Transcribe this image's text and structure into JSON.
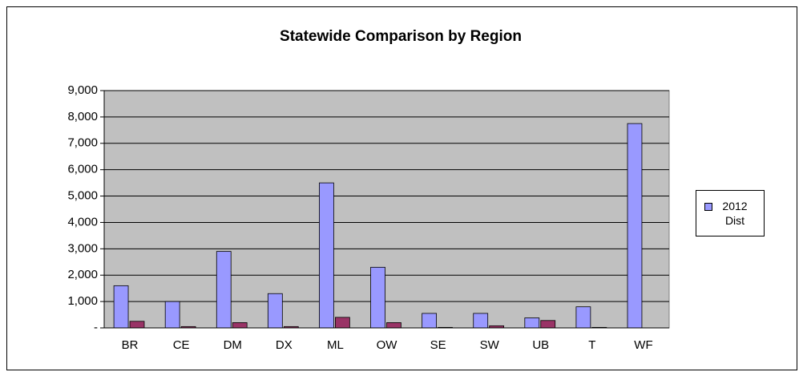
{
  "chart_data": {
    "type": "bar",
    "title": "Statewide Comparison by Region",
    "categories": [
      "BR",
      "CE",
      "DM",
      "DX",
      "ML",
      "OW",
      "SE",
      "SW",
      "UB",
      "T",
      "WF"
    ],
    "series": [
      {
        "name": "2012 Dist",
        "color": "#9999ff",
        "values": [
          1600,
          1000,
          2900,
          1300,
          5500,
          2300,
          550,
          550,
          380,
          800,
          7750
        ]
      },
      {
        "color": "#993366",
        "values": [
          250,
          50,
          200,
          50,
          400,
          200,
          20,
          80,
          280,
          20,
          0
        ]
      }
    ],
    "ylim": [
      0,
      9000
    ],
    "yticks": [
      {
        "value": 0,
        "label": "-"
      },
      {
        "value": 1000,
        "label": "1,000"
      },
      {
        "value": 2000,
        "label": "2,000"
      },
      {
        "value": 3000,
        "label": "3,000"
      },
      {
        "value": 4000,
        "label": "4,000"
      },
      {
        "value": 5000,
        "label": "5,000"
      },
      {
        "value": 6000,
        "label": "6,000"
      },
      {
        "value": 7000,
        "label": "7,000"
      },
      {
        "value": 8000,
        "label": "8,000"
      },
      {
        "value": 9000,
        "label": "9,000"
      }
    ],
    "grid": true,
    "legend": "right"
  }
}
